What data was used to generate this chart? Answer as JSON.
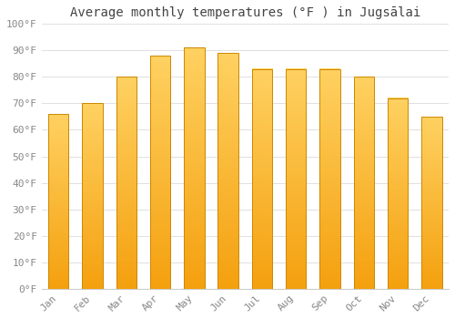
{
  "title": "Average monthly temperatures (°F ) in Jugsālai",
  "months": [
    "Jan",
    "Feb",
    "Mar",
    "Apr",
    "May",
    "Jun",
    "Jul",
    "Aug",
    "Sep",
    "Oct",
    "Nov",
    "Dec"
  ],
  "values": [
    66,
    70,
    80,
    88,
    91,
    89,
    83,
    83,
    83,
    80,
    72,
    65
  ],
  "color_top": "#FFD060",
  "color_bottom": "#F5A010",
  "bar_edge_color": "#CC8800",
  "ylim": [
    0,
    100
  ],
  "yticks": [
    0,
    10,
    20,
    30,
    40,
    50,
    60,
    70,
    80,
    90,
    100
  ],
  "ytick_labels": [
    "0°F",
    "10°F",
    "20°F",
    "30°F",
    "40°F",
    "50°F",
    "60°F",
    "70°F",
    "80°F",
    "90°F",
    "100°F"
  ],
  "background_color": "#ffffff",
  "grid_color": "#e0e0e0",
  "title_fontsize": 10,
  "tick_fontsize": 8,
  "figsize": [
    5.0,
    3.5
  ],
  "dpi": 100
}
